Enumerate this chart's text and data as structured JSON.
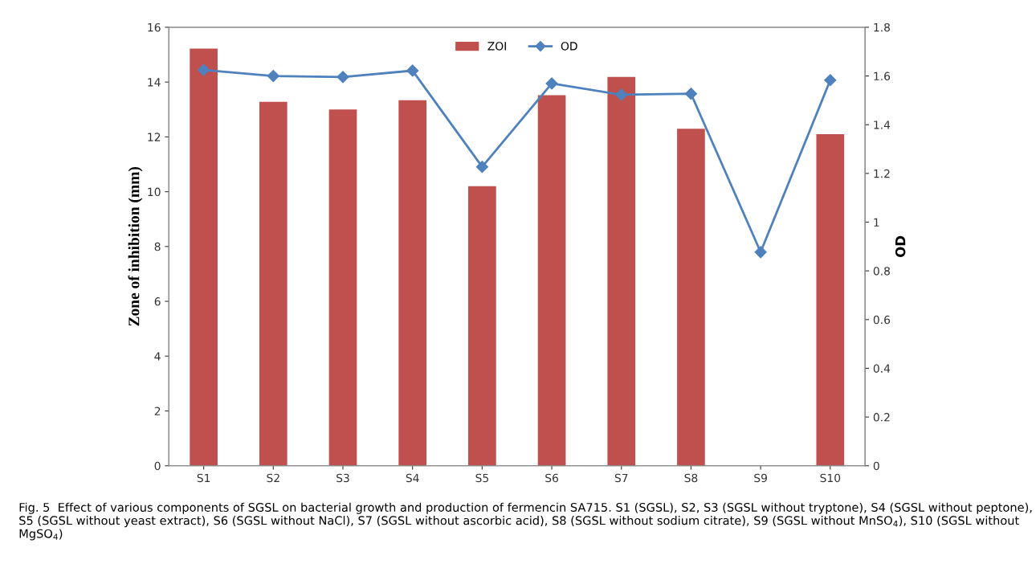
{
  "chart_data": {
    "type": "bar",
    "categories": [
      "S1",
      "S2",
      "S3",
      "S4",
      "S5",
      "S6",
      "S7",
      "S8",
      "S9",
      "S10"
    ],
    "series": [
      {
        "name": "ZOI",
        "color": "#c0504d",
        "values": [
          15.22,
          13.28,
          13.0,
          13.34,
          10.2,
          13.52,
          14.19,
          12.3,
          0,
          12.1
        ]
      },
      {
        "name": "OD",
        "type": "line",
        "axis": "y2",
        "color": "#4f81bd",
        "marker": "diamond",
        "values": [
          1.625,
          1.6,
          1.596,
          1.622,
          1.227,
          1.569,
          1.523,
          1.527,
          0.877,
          1.583
        ]
      }
    ],
    "ylabel": "Zone of inhibition (mm)",
    "y2label": "OD",
    "ylim": [
      0,
      16
    ],
    "yticks": [
      0,
      2,
      4,
      6,
      8,
      10,
      12,
      14,
      16
    ],
    "y2lim": [
      0,
      1.8
    ],
    "y2ticks": [
      0,
      0.2,
      0.4,
      0.6,
      0.8,
      1,
      1.2,
      1.4,
      1.6,
      1.8
    ],
    "legend": "top",
    "grid": false,
    "annotations": [
      "Fig. 5  Effect of various components of SGSL on bacterial growth and production of fermencin SA715. S1 (SGSL), S2, S3 (SGSL without tryptone), S4 (SGSL without peptone), S5 (SGSL without yeast extract), S6 (SGSL without NaCl), S7 (SGSL without ascorbic acid), S8 (SGSL without sodium citrate), S9 (SGSL without MnSO$_{4}$), S10 (SGSL without MgSO$_{4}$)"
    ]
  }
}
